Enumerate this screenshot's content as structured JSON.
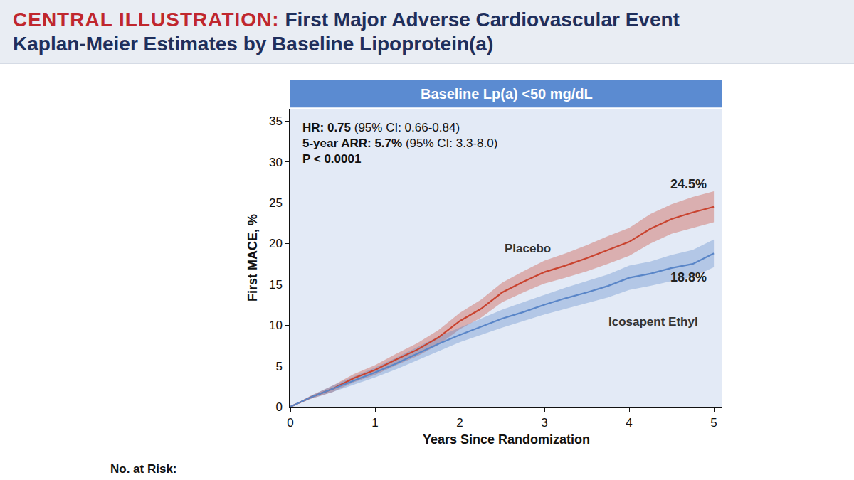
{
  "chart_data": {
    "type": "line",
    "header_label": "CENTRAL ILLUSTRATION:",
    "title": "First Major Adverse Cardiovascular Event",
    "subtitle": "Kaplan-Meier Estimates by Baseline Lipoprotein(a)",
    "panel_title": "Baseline Lp(a) <50 mg/dL",
    "annotations": [
      "HR: 0.75 (95% CI: 0.66-0.84)",
      "5-year ARR: 5.7% (95% CI: 3.3-8.0)",
      "P < 0.0001"
    ],
    "x_label": "Years Since Randomization",
    "y_label": "First MACE, %",
    "footer": "No. at Risk:",
    "x": [
      0,
      0.25,
      0.5,
      0.75,
      1,
      1.25,
      1.5,
      1.75,
      2,
      2.25,
      2.5,
      2.75,
      3,
      3.25,
      3.5,
      3.75,
      4,
      4.25,
      4.5,
      4.75,
      5
    ],
    "series": [
      {
        "name": "Placebo",
        "color": "#c9432f",
        "end_label": "24.5%",
        "values": [
          0,
          1.2,
          2.2,
          3.5,
          4.5,
          5.8,
          7.0,
          8.5,
          10.5,
          12.0,
          14.0,
          15.3,
          16.5,
          17.3,
          18.2,
          19.2,
          20.2,
          21.8,
          23.0,
          23.8,
          24.5
        ],
        "ci_lower": [
          0,
          1.0,
          1.8,
          3.0,
          3.9,
          5.1,
          6.2,
          7.6,
          9.5,
          10.9,
          12.8,
          14.0,
          15.1,
          15.8,
          16.6,
          17.5,
          18.5,
          20.0,
          21.2,
          21.9,
          22.6
        ],
        "ci_upper": [
          0,
          1.4,
          2.6,
          4.0,
          5.1,
          6.5,
          7.8,
          9.4,
          11.5,
          13.1,
          15.2,
          16.6,
          17.9,
          18.8,
          19.8,
          20.9,
          21.9,
          23.6,
          24.8,
          25.7,
          26.4
        ]
      },
      {
        "name": "Icosapent Ethyl",
        "color": "#5a86c8",
        "end_label": "18.8%",
        "values": [
          0,
          1.2,
          2.2,
          3.2,
          4.2,
          5.3,
          6.5,
          7.7,
          8.8,
          9.8,
          10.8,
          11.6,
          12.5,
          13.3,
          14.0,
          14.8,
          15.8,
          16.3,
          17.0,
          17.5,
          18.8
        ],
        "ci_lower": [
          0,
          1.0,
          1.8,
          2.7,
          3.6,
          4.6,
          5.7,
          6.8,
          7.9,
          8.8,
          9.7,
          10.5,
          11.3,
          12.0,
          12.7,
          13.4,
          14.3,
          14.8,
          15.4,
          15.9,
          17.1
        ],
        "ci_upper": [
          0,
          1.4,
          2.6,
          3.7,
          4.8,
          6.0,
          7.3,
          8.6,
          9.7,
          10.8,
          11.9,
          12.8,
          13.7,
          14.6,
          15.4,
          16.2,
          17.3,
          17.8,
          18.6,
          19.2,
          20.5
        ]
      }
    ],
    "xlim": [
      0,
      5.1
    ],
    "ylim": [
      0,
      36.5
    ],
    "xticks": [
      0,
      1,
      2,
      3,
      4,
      5
    ],
    "yticks": [
      0,
      5,
      10,
      15,
      20,
      25,
      30,
      35
    ],
    "grid": false
  }
}
